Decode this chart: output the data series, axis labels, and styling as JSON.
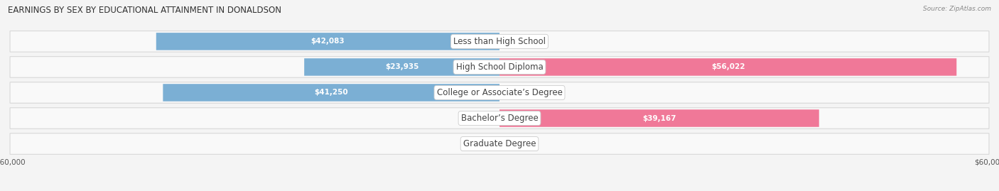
{
  "title": "EARNINGS BY SEX BY EDUCATIONAL ATTAINMENT IN DONALDSON",
  "source": "Source: ZipAtlas.com",
  "categories": [
    "Less than High School",
    "High School Diploma",
    "College or Associate’s Degree",
    "Bachelor’s Degree",
    "Graduate Degree"
  ],
  "male_values": [
    42083,
    23935,
    41250,
    0,
    0
  ],
  "female_values": [
    0,
    56022,
    0,
    39167,
    0
  ],
  "male_color": "#7bafd4",
  "female_color": "#f07898",
  "male_label_color": "#ffffff",
  "female_label_color": "#ffffff",
  "zero_label_color": "#555555",
  "axis_max": 60000,
  "background_color": "#f4f4f4",
  "row_bg_color": "#f9f9f9",
  "row_border_color": "#d8d8d8",
  "title_fontsize": 8.5,
  "source_fontsize": 6.5,
  "label_fontsize": 7.5,
  "tick_fontsize": 7.5,
  "cat_fontsize": 8.5
}
